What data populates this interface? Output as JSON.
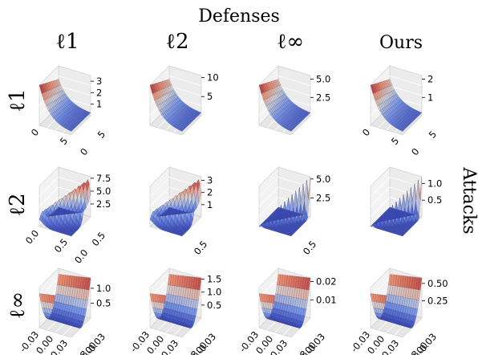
{
  "figure": {
    "title": "Defenses",
    "side_label": "Attacks",
    "column_headers": [
      "ℓ1",
      "ℓ2",
      "ℓ∞",
      "Ours"
    ],
    "row_headers": [
      "ℓ1",
      "ℓ2",
      "ℓ∞"
    ]
  },
  "chart_data": [
    {
      "type": "surface",
      "row": "ℓ1",
      "column": "ℓ1",
      "zticks": [
        "1",
        "2",
        "3"
      ],
      "xticks": [
        "0",
        "5"
      ],
      "yticks": [
        "0",
        "5"
      ],
      "zlim": [
        0,
        3.5
      ],
      "shape": "ridge-back-decay",
      "cmap": "coolwarm"
    },
    {
      "type": "surface",
      "row": "ℓ1",
      "column": "ℓ2",
      "zticks": [
        "5",
        "10"
      ],
      "xticks": [],
      "yticks": [],
      "zlim": [
        0,
        10.5
      ],
      "shape": "ridge-back-decay",
      "cmap": "coolwarm"
    },
    {
      "type": "surface",
      "row": "ℓ1",
      "column": "ℓ∞",
      "zticks": [
        "2.5",
        "5.0"
      ],
      "xticks": [],
      "yticks": [],
      "zlim": [
        0,
        5.5
      ],
      "shape": "ridge-back-decay",
      "cmap": "coolwarm"
    },
    {
      "type": "surface",
      "row": "ℓ1",
      "column": "Ours",
      "zticks": [
        "1",
        "2"
      ],
      "xticks": [
        "0",
        "5"
      ],
      "yticks": [
        "0",
        "5"
      ],
      "zlim": [
        0,
        2.2
      ],
      "shape": "ridge-back-decay",
      "cmap": "coolwarm"
    },
    {
      "type": "surface",
      "row": "ℓ2",
      "column": "ℓ1",
      "zticks": [
        "2.5",
        "5.0",
        "7.5"
      ],
      "xticks": [
        "0.0",
        "0.5"
      ],
      "yticks": [
        "0.0",
        "0.5"
      ],
      "zlim": [
        0,
        7.8
      ],
      "shape": "diagonal-ridge",
      "cmap": "coolwarm"
    },
    {
      "type": "surface",
      "row": "ℓ2",
      "column": "ℓ2",
      "zticks": [
        "1",
        "2",
        "3"
      ],
      "xticks": [],
      "yticks": [
        "0.5"
      ],
      "zlim": [
        0,
        3.3
      ],
      "shape": "diagonal-ridge",
      "cmap": "coolwarm"
    },
    {
      "type": "surface",
      "row": "ℓ2",
      "column": "ℓ∞",
      "zticks": [
        "2.5",
        "5.0"
      ],
      "xticks": [],
      "yticks": [
        "0.5"
      ],
      "zlim": [
        0,
        5.3
      ],
      "shape": "thin-diagonal",
      "cmap": "coolwarm"
    },
    {
      "type": "surface",
      "row": "ℓ2",
      "column": "Ours",
      "zticks": [
        "0.5",
        "1.0"
      ],
      "xticks": [],
      "yticks": [],
      "zlim": [
        0,
        1.2
      ],
      "shape": "thin-diagonal",
      "cmap": "coolwarm"
    },
    {
      "type": "surface",
      "row": "ℓ∞",
      "column": "ℓ1",
      "zticks": [
        "0.5",
        "1.0"
      ],
      "xticks": [
        "-0.03",
        "0.00",
        "0.03"
      ],
      "yticks": [
        "0.03",
        "0.00",
        "-0.03"
      ],
      "zlim": [
        0,
        1.35
      ],
      "shape": "parabolic-trough",
      "cmap": "coolwarm"
    },
    {
      "type": "surface",
      "row": "ℓ∞",
      "column": "ℓ2",
      "zticks": [
        "0.5",
        "1.0",
        "1.5"
      ],
      "xticks": [
        "-0.03",
        "0.00",
        "0.03"
      ],
      "yticks": [
        "0.03",
        "0.00",
        "-0.03"
      ],
      "zlim": [
        0,
        1.55
      ],
      "shape": "parabolic-trough",
      "cmap": "coolwarm"
    },
    {
      "type": "surface",
      "row": "ℓ∞",
      "column": "ℓ∞",
      "zticks": [
        "0.01",
        "0.02"
      ],
      "xticks": [
        "-0.03",
        "0.00",
        "0.03"
      ],
      "yticks": [
        "0.03",
        "0.00",
        "-0.03"
      ],
      "zlim": [
        0,
        0.022
      ],
      "shape": "parabolic-trough",
      "cmap": "coolwarm"
    },
    {
      "type": "surface",
      "row": "ℓ∞",
      "column": "Ours",
      "zticks": [
        "0.25",
        "0.50"
      ],
      "xticks": [
        "-0.03",
        "0.00",
        "0.03"
      ],
      "yticks": [
        "0.03",
        "0.00",
        "-0.03"
      ],
      "zlim": [
        0,
        0.58
      ],
      "shape": "parabolic-trough",
      "cmap": "coolwarm"
    }
  ]
}
